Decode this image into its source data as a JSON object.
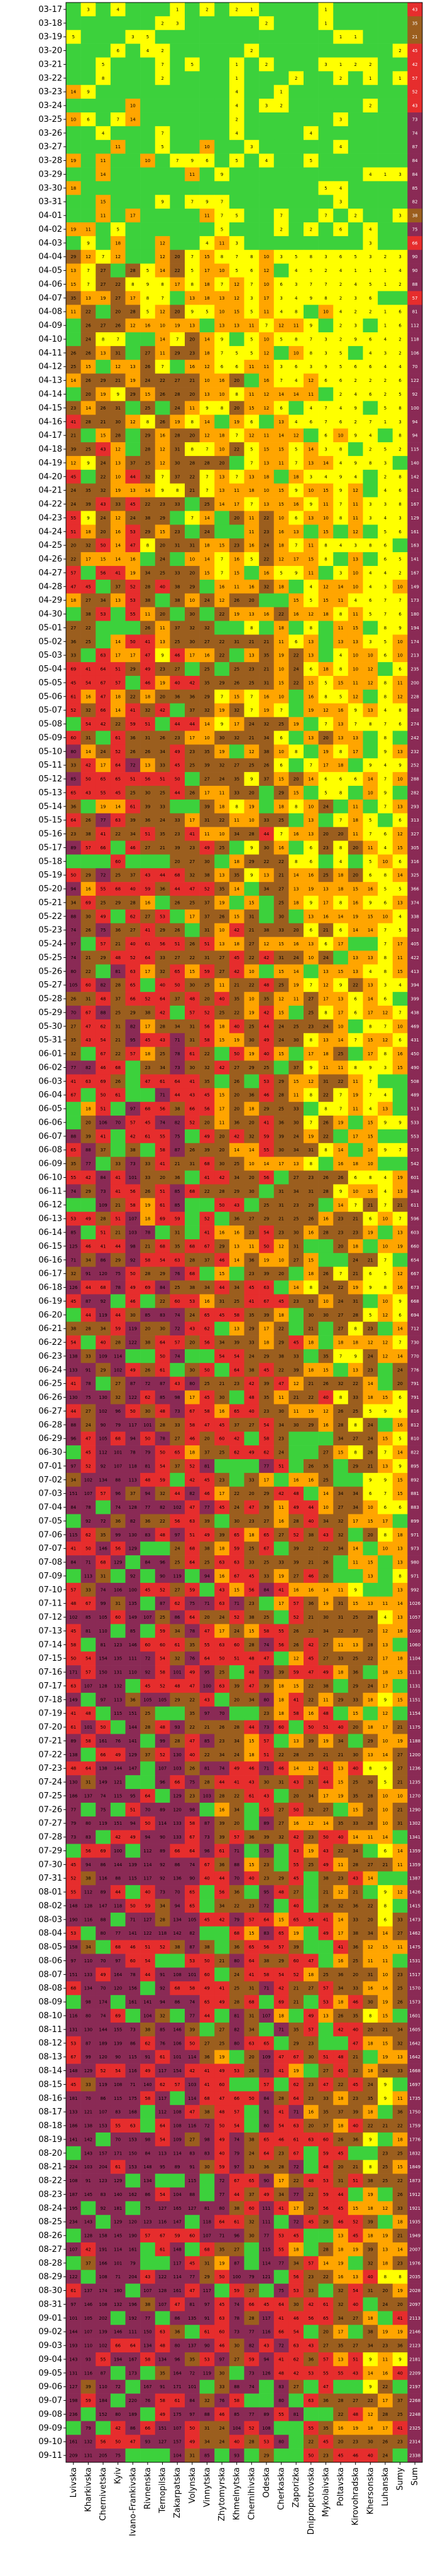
{
  "chart_data": {
    "type": "heatmap",
    "title": "",
    "xlabel": "",
    "ylabel": "",
    "grid": false,
    "legend": "none",
    "x_categories": [
      "Lvivska",
      "Kharkivska",
      "Chernivetska",
      "Kyiv",
      "Ivano-Frankivska",
      "Rivnenska",
      "Ternopilska",
      "Zakarpatska",
      "Volynska",
      "Vinnytska",
      "Zhytomyrska",
      "Khmelnytska",
      "Chernihivska",
      "Odeska",
      "Cherkaska",
      "Zaporizka",
      "Dnipropetrovska",
      "Mykolaivska",
      "Poltavska",
      "Kirovohradska",
      "Khersonska",
      "Luhanska",
      "Sumy",
      "Sum"
    ],
    "dates": [
      "03-17",
      "03-18",
      "03-19",
      "03-20",
      "03-21",
      "03-22",
      "03-23",
      "03-24",
      "03-25",
      "03-26",
      "03-27",
      "03-28",
      "03-29",
      "03-30",
      "03-31",
      "04-01",
      "04-02",
      "04-03",
      "04-04",
      "04-05",
      "04-06",
      "04-07",
      "04-08",
      "04-09",
      "04-10",
      "04-11",
      "04-12",
      "04-13",
      "04-14",
      "04-15",
      "04-16",
      "04-17",
      "04-18",
      "04-19",
      "04-20",
      "04-21",
      "04-22",
      "04-23",
      "04-24",
      "04-25",
      "04-26",
      "04-27",
      "04-28",
      "04-29",
      "04-30",
      "05-01",
      "05-02",
      "05-03",
      "05-04",
      "05-05",
      "05-06",
      "05-07",
      "05-08",
      "05-09",
      "05-10",
      "05-11",
      "05-12",
      "05-13",
      "05-14",
      "05-15",
      "05-16",
      "05-17",
      "05-18",
      "05-19",
      "05-20",
      "05-21",
      "05-22",
      "05-23",
      "05-24",
      "05-25",
      "05-26",
      "05-27",
      "05-28",
      "05-29",
      "05-30",
      "05-31",
      "06-01",
      "06-02",
      "06-03",
      "06-04",
      "06-05",
      "06-06",
      "06-07",
      "06-08",
      "06-09",
      "06-10",
      "06-11",
      "06-12",
      "06-13",
      "06-14",
      "06-15",
      "06-16",
      "06-17",
      "06-18",
      "06-19",
      "06-20",
      "06-21",
      "06-22",
      "06-23",
      "06-24",
      "06-25",
      "06-26",
      "06-27",
      "06-28",
      "06-29",
      "06-30",
      "07-01",
      "07-02",
      "07-03",
      "07-04",
      "07-05",
      "07-06",
      "07-07",
      "07-08",
      "07-09",
      "07-10",
      "07-11",
      "07-12",
      "07-13",
      "07-14",
      "07-15",
      "07-16",
      "07-17",
      "07-18",
      "07-19",
      "07-20",
      "07-21",
      "07-22",
      "07-23",
      "07-24",
      "07-25",
      "07-26",
      "07-27",
      "07-28",
      "07-29",
      "07-30",
      "07-31",
      "08-01",
      "08-02",
      "08-03",
      "08-04",
      "08-05",
      "08-06",
      "08-07",
      "08-08",
      "08-09",
      "08-10",
      "08-11",
      "08-12",
      "08-13",
      "08-14",
      "08-15",
      "08-16",
      "08-17",
      "08-18",
      "08-19",
      "08-20",
      "08-21",
      "08-22",
      "08-23",
      "08-24",
      "08-25",
      "08-26",
      "08-27",
      "08-28",
      "08-29",
      "08-30",
      "08-31",
      "09-01",
      "09-02",
      "09-03",
      "09-04",
      "09-05",
      "09-06",
      "09-07",
      "09-08",
      "09-09",
      "09-10",
      "09-11"
    ],
    "scale": {
      "bins": [
        0,
        1,
        10,
        20,
        40,
        70,
        100000
      ],
      "colors": [
        "#3cd13c",
        "#ffff00",
        "#ffa500",
        "#9b5e1e",
        "#e62d2d",
        "#8a2a55"
      ]
    },
    "sum_label_color": "#ffffff"
  }
}
